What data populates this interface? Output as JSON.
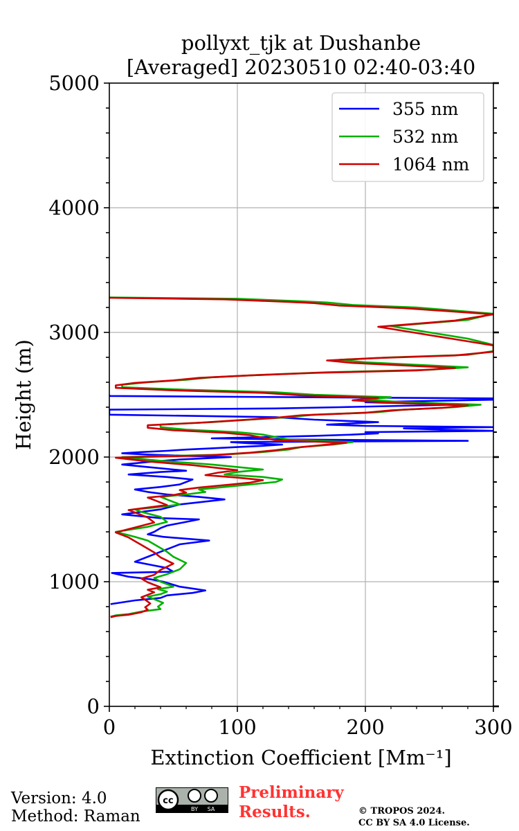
{
  "chart_data": {
    "type": "line",
    "title": [
      "pollyxt_tjk at Dushanbe",
      "[Averaged] 20230510 02:40-03:40"
    ],
    "xlabel": "Extinction Coefficient [Mm⁻¹]",
    "ylabel": "Height (m)",
    "xlim": [
      0,
      300
    ],
    "ylim": [
      0,
      5000
    ],
    "xticks": [
      0,
      100,
      200,
      300
    ],
    "yticks": [
      0,
      1000,
      2000,
      3000,
      4000,
      5000
    ],
    "grid": true,
    "legend_position": "top-right",
    "series": [
      {
        "name": "355 nm",
        "color": "#0000ff",
        "x": [
          1,
          20,
          40,
          45,
          65,
          75,
          55,
          42,
          32,
          15,
          2,
          50,
          45,
          35,
          20,
          30,
          40,
          55,
          78,
          42,
          30,
          35,
          40,
          45,
          60,
          70,
          40,
          10,
          25,
          40,
          55,
          90,
          70,
          45,
          30,
          20,
          40,
          55,
          60,
          65,
          45,
          15,
          40,
          60,
          50,
          30,
          10,
          30,
          55,
          75,
          95,
          60,
          30,
          10,
          25,
          45,
          60,
          80,
          100,
          120,
          135,
          110,
          95,
          280,
          150,
          80,
          120,
          160,
          190,
          210,
          200,
          300,
          260,
          230,
          300,
          200,
          170,
          210,
          160,
          130,
          0,
          0,
          0,
          130,
          180,
          270,
          200,
          300,
          310,
          150,
          0,
          0
        ],
        "y": [
          820,
          850,
          870,
          890,
          910,
          930,
          960,
          1000,
          1020,
          1040,
          1070,
          1080,
          1110,
          1130,
          1160,
          1200,
          1240,
          1300,
          1330,
          1360,
          1380,
          1400,
          1430,
          1450,
          1480,
          1500,
          1510,
          1540,
          1560,
          1580,
          1620,
          1660,
          1680,
          1700,
          1720,
          1740,
          1760,
          1780,
          1800,
          1820,
          1840,
          1860,
          1880,
          1890,
          1900,
          1920,
          1940,
          1960,
          1980,
          1990,
          2000,
          2010,
          2020,
          2030,
          2040,
          2050,
          2060,
          2070,
          2080,
          2090,
          2100,
          2110,
          2120,
          2130,
          2140,
          2150,
          2160,
          2170,
          2180,
          2190,
          2200,
          2210,
          2220,
          2230,
          2240,
          2250,
          2260,
          2280,
          2300,
          2320,
          2340,
          2360,
          2380,
          2390,
          2400,
          2420,
          2440,
          2460,
          2470,
          2480,
          2490,
          2500
        ]
      },
      {
        "name": "532 nm",
        "color": "#00b000",
        "x": [
          1,
          5,
          15,
          25,
          40,
          38,
          42,
          35,
          30,
          40,
          45,
          38,
          50,
          45,
          40,
          35,
          45,
          55,
          60,
          50,
          45,
          40,
          35,
          30,
          20,
          5,
          30,
          45,
          40,
          25,
          20,
          40,
          55,
          50,
          45,
          40,
          60,
          75,
          70,
          90,
          110,
          130,
          135,
          120,
          90,
          100,
          120,
          80,
          40,
          10,
          90,
          120,
          140,
          150,
          175,
          190,
          140,
          130,
          120,
          100,
          60,
          40,
          40,
          80,
          110,
          140,
          160,
          210,
          230,
          270,
          290,
          230,
          200,
          220,
          160,
          130,
          60,
          10,
          10,
          30,
          60,
          80,
          120,
          170,
          250,
          280,
          240,
          200,
          180,
          220,
          280,
          300,
          300,
          280,
          250,
          220,
          280,
          300,
          240,
          190,
          170,
          150,
          100,
          0
        ],
        "y": [
          720,
          730,
          740,
          760,
          780,
          800,
          830,
          860,
          880,
          900,
          920,
          940,
          960,
          980,
          1000,
          1030,
          1060,
          1100,
          1150,
          1200,
          1240,
          1270,
          1300,
          1330,
          1360,
          1400,
          1440,
          1480,
          1520,
          1560,
          1580,
          1600,
          1620,
          1640,
          1660,
          1680,
          1700,
          1720,
          1740,
          1760,
          1780,
          1800,
          1820,
          1840,
          1860,
          1880,
          1900,
          1940,
          1970,
          2000,
          2020,
          2040,
          2060,
          2080,
          2100,
          2120,
          2140,
          2160,
          2180,
          2200,
          2220,
          2240,
          2260,
          2280,
          2300,
          2320,
          2340,
          2360,
          2380,
          2400,
          2420,
          2440,
          2460,
          2480,
          2500,
          2520,
          2540,
          2560,
          2580,
          2600,
          2620,
          2640,
          2660,
          2680,
          2700,
          2720,
          2740,
          2760,
          2780,
          2800,
          2820,
          2850,
          2900,
          2950,
          3000,
          3050,
          3100,
          3150,
          3200,
          3220,
          3240,
          3250,
          3270,
          3280
        ]
      },
      {
        "name": "1064 nm",
        "color": "#cc0000",
        "x": [
          1,
          5,
          15,
          25,
          30,
          28,
          32,
          28,
          25,
          30,
          35,
          30,
          40,
          35,
          30,
          25,
          35,
          40,
          50,
          40,
          35,
          30,
          25,
          20,
          15,
          5,
          20,
          35,
          30,
          20,
          15,
          30,
          45,
          40,
          35,
          30,
          50,
          60,
          55,
          70,
          90,
          110,
          120,
          100,
          75,
          85,
          100,
          65,
          30,
          5,
          80,
          110,
          130,
          145,
          165,
          185,
          130,
          120,
          110,
          90,
          50,
          30,
          30,
          70,
          100,
          130,
          150,
          200,
          220,
          260,
          280,
          220,
          190,
          210,
          150,
          120,
          50,
          5,
          5,
          20,
          50,
          70,
          110,
          160,
          240,
          270,
          230,
          190,
          170,
          210,
          270,
          300,
          300,
          270,
          240,
          210,
          270,
          300,
          230,
          180,
          160,
          140,
          90,
          0
        ],
        "y": [
          715,
          725,
          735,
          755,
          775,
          795,
          825,
          855,
          875,
          895,
          915,
          935,
          955,
          975,
          995,
          1025,
          1055,
          1095,
          1145,
          1195,
          1235,
          1265,
          1295,
          1325,
          1355,
          1395,
          1435,
          1475,
          1515,
          1555,
          1575,
          1595,
          1615,
          1635,
          1655,
          1675,
          1695,
          1715,
          1735,
          1755,
          1775,
          1795,
          1815,
          1835,
          1855,
          1875,
          1895,
          1935,
          1965,
          1995,
          2015,
          2035,
          2055,
          2075,
          2095,
          2115,
          2135,
          2155,
          2175,
          2195,
          2215,
          2235,
          2255,
          2275,
          2295,
          2315,
          2335,
          2355,
          2375,
          2395,
          2415,
          2435,
          2455,
          2475,
          2495,
          2515,
          2535,
          2555,
          2575,
          2595,
          2615,
          2635,
          2655,
          2675,
          2695,
          2715,
          2735,
          2755,
          2775,
          2795,
          2815,
          2845,
          2895,
          2945,
          2995,
          3045,
          3095,
          3145,
          3195,
          3215,
          3235,
          3245,
          3265,
          3278
        ]
      }
    ]
  },
  "footer": {
    "version": "Version: 4.0",
    "method": "Method: Raman",
    "preliminary_line1": "Preliminary",
    "preliminary_line2": "Results.",
    "copyright_line1": "© TROPOS 2024.",
    "copyright_line2": "CC BY SA 4.0 License.",
    "license_badge": {
      "cc": "cc",
      "by": "BY",
      "sa": "SA"
    }
  }
}
